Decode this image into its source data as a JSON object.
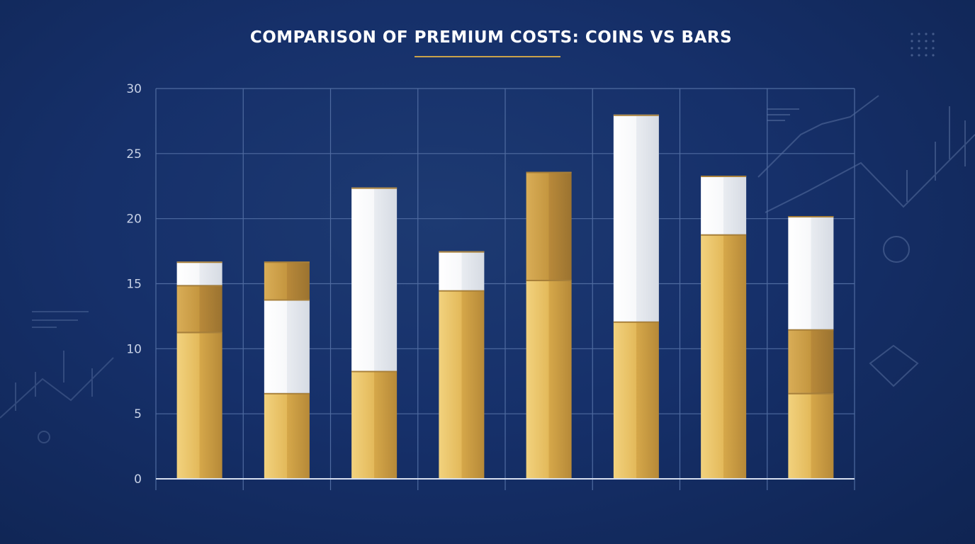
{
  "title": "COMPARISON OF PREMIUM COSTS: COINS VS BARS",
  "chart_data": {
    "type": "bar",
    "stacked": true,
    "title": "COMPARISON OF PREMIUM COSTS: COINS VS BARS",
    "xlabel": "",
    "ylabel": "",
    "ylim": [
      0,
      30
    ],
    "yticks": [
      0,
      5,
      10,
      15,
      20,
      25,
      30
    ],
    "grid": true,
    "categories": [
      "",
      "",
      "",
      "",
      "",
      "",
      "",
      ""
    ],
    "series": [
      {
        "values": [
          11.3,
          6.6,
          8.3,
          14.5,
          15.3,
          12.1,
          18.8,
          6.6
        ]
      },
      {
        "values": [
          3.6,
          0,
          0,
          0,
          8.3,
          0,
          0,
          4.9
        ]
      },
      {
        "values": [
          1.8,
          7.2,
          14.1,
          3.0,
          0,
          15.9,
          4.5,
          8.7
        ]
      },
      {
        "values": [
          0,
          2.9,
          0,
          0,
          0,
          0,
          0,
          0
        ]
      }
    ],
    "colors": {
      "gold": "#e2b857",
      "dark_gold": "#b98a3a",
      "white": "#f3f5f8",
      "grid": "#4f6ba0",
      "axis": "#c7d1e6"
    }
  }
}
